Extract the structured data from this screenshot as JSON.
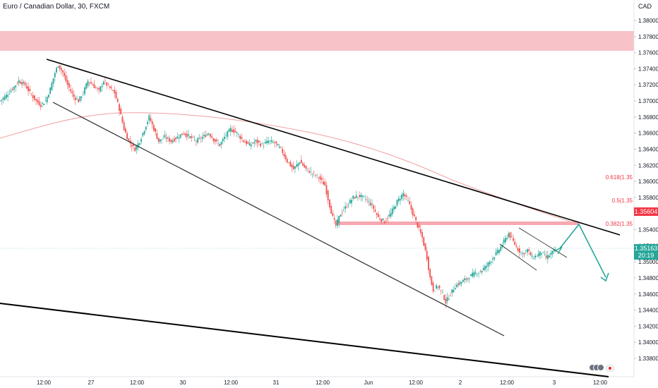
{
  "header": {
    "title": "Euro / Canadian Dollar, 30, FXCM",
    "currency": "CAD"
  },
  "price_labels": {
    "current_price": "1.35163",
    "countdown": "20:19",
    "marked_price": "1.35604"
  },
  "colors": {
    "background": "#ffffff",
    "up": "#26a69a",
    "down": "#ef5350",
    "resistance_zone": "#f8c3c8",
    "trendline": "#000000",
    "moving_average": "#f0a0a0",
    "projection": "#26a69a",
    "current_price_tag": "#26a69a",
    "marked_price_tag": "#f23645"
  },
  "icons": [
    "candle-icon",
    "canada-flag-icon"
  ],
  "chart_data": {
    "type": "candlestick",
    "title": "Euro / Canadian Dollar, 30, FXCM",
    "ylabel": "CAD",
    "ylim": [
      1.337,
      1.3815
    ],
    "y_ticks": [
      "1.38000",
      "1.37800",
      "1.37600",
      "1.37400",
      "1.37200",
      "1.37000",
      "1.36800",
      "1.36600",
      "1.36400",
      "1.36200",
      "1.36000",
      "1.35800",
      "1.35600",
      "1.35400",
      "1.35200",
      "1.35000",
      "1.34800",
      "1.34600",
      "1.34400",
      "1.34200",
      "1.34000",
      "1.33800"
    ],
    "x_labels": [
      "12:00",
      "27",
      "12:00",
      "30",
      "12:00",
      "31",
      "12:00",
      "Jun",
      "12:00",
      "2",
      "12:00",
      "3",
      "12:00"
    ],
    "path_points": [
      [
        0,
        1.37
      ],
      [
        3,
        1.3705
      ],
      [
        8,
        1.3715
      ],
      [
        12,
        1.3725
      ],
      [
        16,
        1.372
      ],
      [
        19,
        1.371
      ],
      [
        23,
        1.37
      ],
      [
        26,
        1.3695
      ],
      [
        29,
        1.37
      ],
      [
        32,
        1.3715
      ],
      [
        35,
        1.3735
      ],
      [
        37,
        1.3745
      ],
      [
        40,
        1.3735
      ],
      [
        43,
        1.372
      ],
      [
        47,
        1.3705
      ],
      [
        50,
        1.37
      ],
      [
        53,
        1.371
      ],
      [
        56,
        1.3725
      ],
      [
        59,
        1.372
      ],
      [
        63,
        1.3712
      ],
      [
        66,
        1.3725
      ],
      [
        69,
        1.3718
      ],
      [
        73,
        1.371
      ],
      [
        76,
        1.369
      ],
      [
        79,
        1.3665
      ],
      [
        82,
        1.365
      ],
      [
        86,
        1.364
      ],
      [
        89,
        1.365
      ],
      [
        92,
        1.3665
      ],
      [
        95,
        1.368
      ],
      [
        97,
        1.367
      ],
      [
        99,
        1.366
      ],
      [
        101,
        1.365
      ],
      [
        105,
        1.3655
      ],
      [
        109,
        1.365
      ],
      [
        113,
        1.3655
      ],
      [
        117,
        1.366
      ],
      [
        121,
        1.3655
      ],
      [
        125,
        1.365
      ],
      [
        129,
        1.3655
      ],
      [
        133,
        1.366
      ],
      [
        137,
        1.365
      ],
      [
        140,
        1.3645
      ],
      [
        143,
        1.3655
      ],
      [
        147,
        1.3665
      ],
      [
        151,
        1.366
      ],
      [
        155,
        1.365
      ],
      [
        159,
        1.3645
      ],
      [
        163,
        1.365
      ],
      [
        167,
        1.3645
      ],
      [
        171,
        1.365
      ],
      [
        175,
        1.3648
      ],
      [
        179,
        1.364
      ],
      [
        183,
        1.3625
      ],
      [
        187,
        1.3615
      ],
      [
        191,
        1.3625
      ],
      [
        195,
        1.3615
      ],
      [
        199,
        1.361
      ],
      [
        203,
        1.3605
      ],
      [
        207,
        1.3595
      ],
      [
        210,
        1.357
      ],
      [
        212,
        1.3555
      ],
      [
        214,
        1.3545
      ],
      [
        217,
        1.356
      ],
      [
        221,
        1.357
      ],
      [
        225,
        1.358
      ],
      [
        229,
        1.3582
      ],
      [
        233,
        1.3578
      ],
      [
        237,
        1.357
      ],
      [
        241,
        1.3555
      ],
      [
        245,
        1.355
      ],
      [
        249,
        1.356
      ],
      [
        253,
        1.3575
      ],
      [
        257,
        1.3585
      ],
      [
        260,
        1.3575
      ],
      [
        263,
        1.356
      ],
      [
        266,
        1.3545
      ],
      [
        269,
        1.353
      ],
      [
        272,
        1.3505
      ],
      [
        274,
        1.348
      ],
      [
        276,
        1.3465
      ],
      [
        279,
        1.347
      ],
      [
        282,
        1.346
      ],
      [
        284,
        1.345
      ],
      [
        287,
        1.346
      ],
      [
        290,
        1.347
      ],
      [
        294,
        1.3475
      ],
      [
        298,
        1.348
      ],
      [
        302,
        1.3485
      ],
      [
        306,
        1.3488
      ],
      [
        310,
        1.3495
      ],
      [
        314,
        1.3505
      ],
      [
        318,
        1.3515
      ],
      [
        321,
        1.3525
      ],
      [
        324,
        1.3535
      ],
      [
        327,
        1.3525
      ],
      [
        330,
        1.3515
      ],
      [
        333,
        1.351
      ],
      [
        336,
        1.3515
      ],
      [
        339,
        1.3505
      ],
      [
        342,
        1.3508
      ],
      [
        345,
        1.3512
      ],
      [
        348,
        1.3505
      ],
      [
        351,
        1.351
      ],
      [
        354,
        1.3515
      ]
    ],
    "current_price": 1.35163,
    "marked_price": 1.35604,
    "resistance_zone": {
      "low": 1.376,
      "high": 1.3785
    },
    "fibonacci_levels": [
      {
        "label": "0.618(1.35",
        "value": 1.3588
      },
      {
        "label": "0.5(1.35",
        "value": 1.3565
      },
      {
        "label": "0.382(1.35",
        "value": 1.3543
      }
    ],
    "moving_average": "slow moving average, pink",
    "projection": "rise to the upper trendline, then decline",
    "legend": "none",
    "grid": false
  }
}
